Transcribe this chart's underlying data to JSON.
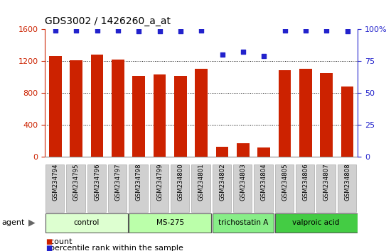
{
  "title": "GDS3002 / 1426260_a_at",
  "samples": [
    "GSM234794",
    "GSM234795",
    "GSM234796",
    "GSM234797",
    "GSM234798",
    "GSM234799",
    "GSM234800",
    "GSM234801",
    "GSM234802",
    "GSM234803",
    "GSM234804",
    "GSM234805",
    "GSM234806",
    "GSM234807",
    "GSM234808"
  ],
  "counts": [
    1260,
    1210,
    1280,
    1220,
    1010,
    1030,
    1010,
    1100,
    130,
    170,
    120,
    1080,
    1100,
    1050,
    880
  ],
  "percentiles": [
    99,
    99,
    99,
    99,
    98,
    98,
    98,
    99,
    80,
    82,
    79,
    99,
    99,
    99,
    98
  ],
  "bar_color": "#cc2200",
  "dot_color": "#2222cc",
  "ylim_left": [
    0,
    1600
  ],
  "ylim_right": [
    0,
    100
  ],
  "yticks_left": [
    0,
    400,
    800,
    1200,
    1600
  ],
  "yticks_right": [
    0,
    25,
    50,
    75,
    100
  ],
  "yticklabels_right": [
    "0",
    "25",
    "50",
    "75",
    "100%"
  ],
  "groups": [
    {
      "label": "control",
      "start": 0,
      "end": 3,
      "color": "#ddffd0"
    },
    {
      "label": "MS-275",
      "start": 4,
      "end": 7,
      "color": "#bbffaa"
    },
    {
      "label": "trichostatin A",
      "start": 8,
      "end": 10,
      "color": "#88ee88"
    },
    {
      "label": "valproic acid",
      "start": 11,
      "end": 14,
      "color": "#44cc44"
    }
  ],
  "group_row_label": "agent",
  "legend_items": [
    {
      "label": "count",
      "color": "#cc2200"
    },
    {
      "label": "percentile rank within the sample",
      "color": "#2222cc"
    }
  ],
  "background_color": "#ffffff",
  "sample_label_bg": "#d0d0d0",
  "tick_color_left": "#cc2200",
  "tick_color_right": "#2222cc"
}
